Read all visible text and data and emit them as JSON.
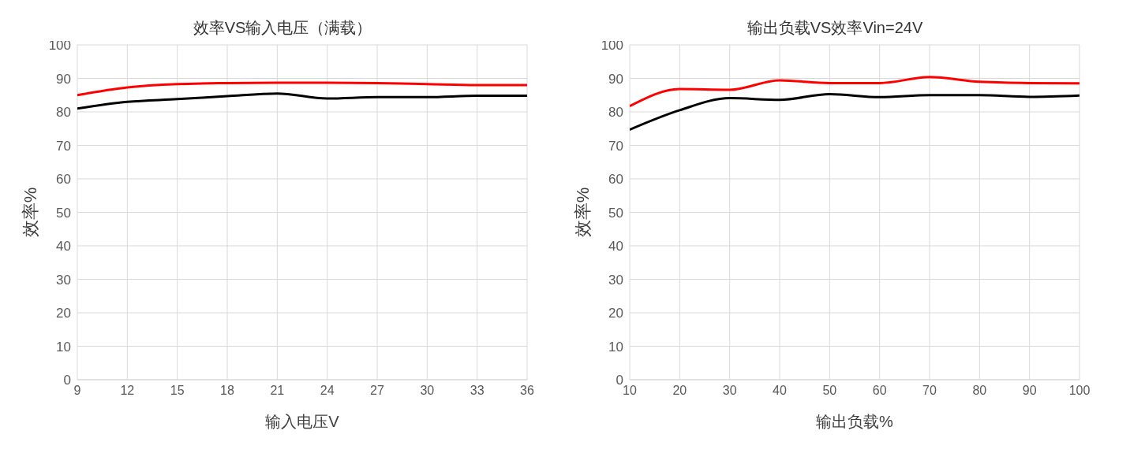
{
  "chart_data": [
    {
      "type": "line",
      "title": "效率VS输入电压（满载）",
      "xlabel": "输入电压V",
      "ylabel": "效率%",
      "x": [
        9,
        12,
        15,
        18,
        21,
        24,
        27,
        30,
        33,
        36
      ],
      "xlim": [
        9,
        36
      ],
      "xticks": [
        9,
        12,
        15,
        18,
        21,
        24,
        27,
        30,
        33,
        36
      ],
      "ylim": [
        0,
        100
      ],
      "yticks": [
        0,
        10,
        20,
        30,
        40,
        50,
        60,
        70,
        80,
        90,
        100
      ],
      "grid": true,
      "marker": "none",
      "line_style": "solid",
      "series": [
        {
          "color": "#000000",
          "values": [
            81,
            83,
            83.8,
            84.7,
            85.5,
            84,
            84.4,
            84.4,
            84.8,
            84.8
          ]
        },
        {
          "color": "#ff0000",
          "values": [
            85,
            87.3,
            88.3,
            88.6,
            88.7,
            88.7,
            88.6,
            88.3,
            88,
            88
          ]
        }
      ]
    },
    {
      "type": "line",
      "title": "输出负载VS效率Vin=24V",
      "xlabel": "输出负载%",
      "ylabel": "效率%",
      "x": [
        10,
        20,
        30,
        40,
        50,
        60,
        70,
        80,
        90,
        100
      ],
      "xlim": [
        10,
        100
      ],
      "xticks": [
        10,
        20,
        30,
        40,
        50,
        60,
        70,
        80,
        90,
        100
      ],
      "ylim": [
        0,
        100
      ],
      "yticks": [
        0,
        10,
        20,
        30,
        40,
        50,
        60,
        70,
        80,
        90,
        100
      ],
      "grid": true,
      "marker": "none",
      "line_style": "solid",
      "series": [
        {
          "color": "#000000",
          "values": [
            74.7,
            80.5,
            84.1,
            83.6,
            85.3,
            84.4,
            85,
            85,
            84.5,
            84.9
          ]
        },
        {
          "color": "#ff0000",
          "values": [
            81.7,
            86.8,
            86.6,
            89.4,
            88.6,
            88.6,
            90.4,
            89,
            88.6,
            88.5
          ]
        }
      ]
    }
  ]
}
